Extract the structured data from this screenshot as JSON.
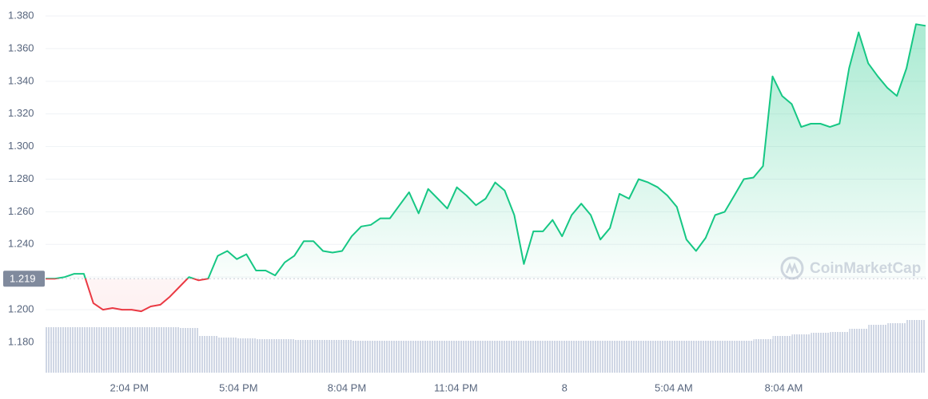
{
  "chart_data": {
    "type": "line",
    "series": [
      {
        "color": "#16c784",
        "down_color": "#ea3943",
        "values": [
          1.219,
          1.219,
          1.22,
          1.222,
          1.222,
          1.204,
          1.2,
          1.201,
          1.2,
          1.2,
          1.199,
          1.202,
          1.203,
          1.208,
          1.214,
          1.22,
          1.218,
          1.219,
          1.233,
          1.236,
          1.231,
          1.234,
          1.224,
          1.224,
          1.221,
          1.229,
          1.233,
          1.242,
          1.242,
          1.236,
          1.235,
          1.236,
          1.245,
          1.251,
          1.252,
          1.256,
          1.256,
          1.264,
          1.272,
          1.259,
          1.274,
          1.268,
          1.262,
          1.275,
          1.27,
          1.264,
          1.268,
          1.278,
          1.273,
          1.258,
          1.228,
          1.248,
          1.248,
          1.255,
          1.245,
          1.258,
          1.265,
          1.258,
          1.243,
          1.25,
          1.271,
          1.268,
          1.28,
          1.278,
          1.275,
          1.27,
          1.263,
          1.243,
          1.236,
          1.244,
          1.258,
          1.26,
          1.27,
          1.28,
          1.281,
          1.288,
          1.343,
          1.331,
          1.326,
          1.312,
          1.314,
          1.314,
          1.312,
          1.314,
          1.348,
          1.37,
          1.351,
          1.343,
          1.336,
          1.331,
          1.348,
          1.375,
          1.374
        ]
      }
    ],
    "volume": [
      57,
      57,
      57,
      57,
      57,
      57,
      57,
      56,
      46,
      44,
      43,
      42,
      42,
      41,
      41,
      41,
      40,
      40,
      40,
      40,
      40,
      40,
      40,
      40,
      40,
      40,
      40,
      40,
      40,
      40,
      40,
      40,
      40,
      40,
      40,
      40,
      40,
      42,
      46,
      48,
      50,
      51,
      55,
      60,
      62,
      66
    ],
    "volume_color": "#cfd6e4",
    "reference": 1.219,
    "ylim": [
      1.1614,
      1.3898
    ],
    "yticks": [
      {
        "value": 1.18,
        "label": "1.180"
      },
      {
        "value": 1.2,
        "label": "1.200"
      },
      {
        "value": 1.22,
        "label": "1.220"
      },
      {
        "value": 1.24,
        "label": "1.240"
      },
      {
        "value": 1.26,
        "label": "1.260"
      },
      {
        "value": 1.28,
        "label": "1.280"
      },
      {
        "value": 1.3,
        "label": "1.300"
      },
      {
        "value": 1.32,
        "label": "1.320"
      },
      {
        "value": 1.34,
        "label": "1.340"
      },
      {
        "value": 1.36,
        "label": "1.360"
      },
      {
        "value": 1.38,
        "label": "1.380"
      }
    ],
    "xticks": [
      {
        "value": 8.75,
        "label": "2:04 PM"
      },
      {
        "value": 20.17,
        "label": "5:04 PM"
      },
      {
        "value": 31.5,
        "label": "8:04 PM"
      },
      {
        "value": 42.9,
        "label": "11:04 PM"
      },
      {
        "value": 54.25,
        "label": "8"
      },
      {
        "value": 65.67,
        "label": "5:04 AM"
      },
      {
        "value": 77.17,
        "label": "8:04 AM"
      }
    ],
    "watermark": "CoinMarketCap",
    "grid": true
  }
}
